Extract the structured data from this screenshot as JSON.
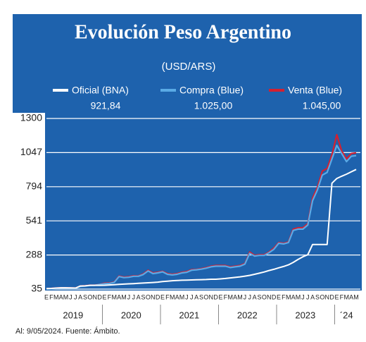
{
  "chart_data": {
    "type": "line",
    "title": "Evolución Peso Argentino",
    "subtitle": "(USD/ARS)",
    "source": "Al: 9/05/2024. Fuente: Ámbito.",
    "categories": [
      "E",
      "F",
      "M",
      "A",
      "M",
      "J",
      "J",
      "A",
      "S",
      "O",
      "N",
      "D",
      "E",
      "F",
      "M",
      "A",
      "M",
      "J",
      "J",
      "A",
      "S",
      "O",
      "N",
      "D",
      "E",
      "F",
      "M",
      "A",
      "M",
      "J",
      "J",
      "A",
      "S",
      "O",
      "N",
      "D",
      "E",
      "F",
      "M",
      "A",
      "M",
      "J",
      "J",
      "A",
      "S",
      "O",
      "N",
      "D",
      "E",
      "F",
      "M",
      "A",
      "M",
      "J",
      "J",
      "A",
      "S",
      "O",
      "N",
      "D",
      "E",
      "F",
      "M",
      "A",
      "M"
    ],
    "year_labels": [
      "2019",
      "2020",
      "2021",
      "2022",
      "2023",
      "´24"
    ],
    "ylim": [
      35,
      1300
    ],
    "yticks": [
      35,
      288,
      541,
      794,
      1047,
      1300
    ],
    "grid": true,
    "series": [
      {
        "name": "Venta (Blue)",
        "color": "#d42030",
        "value_label": "1.045,00",
        "values": [
          39,
          40,
          43,
          45,
          45,
          44,
          43,
          58,
          60,
          64,
          65,
          70,
          79,
          80,
          88,
          132,
          124,
          127,
          134,
          133,
          148,
          175,
          155,
          160,
          167,
          150,
          145,
          150,
          160,
          165,
          180,
          181,
          187,
          195,
          205,
          210,
          210,
          210,
          200,
          205,
          210,
          225,
          310,
          285,
          290,
          290,
          310,
          340,
          380,
          375,
          385,
          480,
          490,
          490,
          520,
          710,
          790,
          910,
          930,
          1030,
          1180,
          1060,
          1000,
          1040,
          1045
        ]
      },
      {
        "name": "Compra (Blue)",
        "color": "#5aaae6",
        "value_label": "1.025,00",
        "values": [
          37,
          38,
          41,
          43,
          43,
          42,
          41,
          55,
          58,
          62,
          63,
          69,
          75,
          77,
          85,
          128,
          120,
          123,
          130,
          130,
          143,
          170,
          150,
          155,
          163,
          145,
          140,
          145,
          155,
          160,
          175,
          178,
          183,
          190,
          200,
          205,
          205,
          205,
          195,
          200,
          205,
          220,
          300,
          280,
          285,
          285,
          305,
          330,
          375,
          370,
          380,
          470,
          480,
          480,
          510,
          690,
          770,
          880,
          900,
          1000,
          1100,
          1040,
          980,
          1020,
          1025
        ]
      },
      {
        "name": "Oficial (BNA)",
        "color": "#ffffff",
        "value_label": "921,84",
        "values": [
          39,
          40,
          43,
          45,
          45,
          44,
          43,
          58,
          59,
          63,
          63,
          63,
          64,
          66,
          68,
          70,
          72,
          74,
          76,
          78,
          80,
          82,
          84,
          87,
          91,
          94,
          97,
          99,
          101,
          102,
          103,
          104,
          105,
          106,
          108,
          108,
          111,
          114,
          118,
          122,
          126,
          131,
          137,
          145,
          153,
          162,
          173,
          182,
          193,
          203,
          215,
          233,
          255,
          275,
          290,
          366,
          366,
          366,
          366,
          820,
          855,
          872,
          887,
          905,
          922
        ]
      }
    ],
    "legend_order": [
      2,
      1,
      0
    ]
  }
}
